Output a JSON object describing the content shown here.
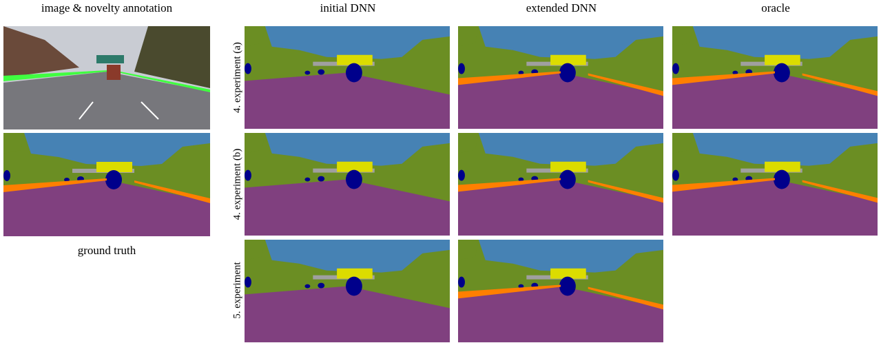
{
  "columns": [
    "image & novelty annotation",
    "initial DNN",
    "extended DNN",
    "oracle"
  ],
  "rows": [
    "4. experiment (a)",
    "4. experiment (b)",
    "5. experiment"
  ],
  "left_caption": "ground truth"
}
